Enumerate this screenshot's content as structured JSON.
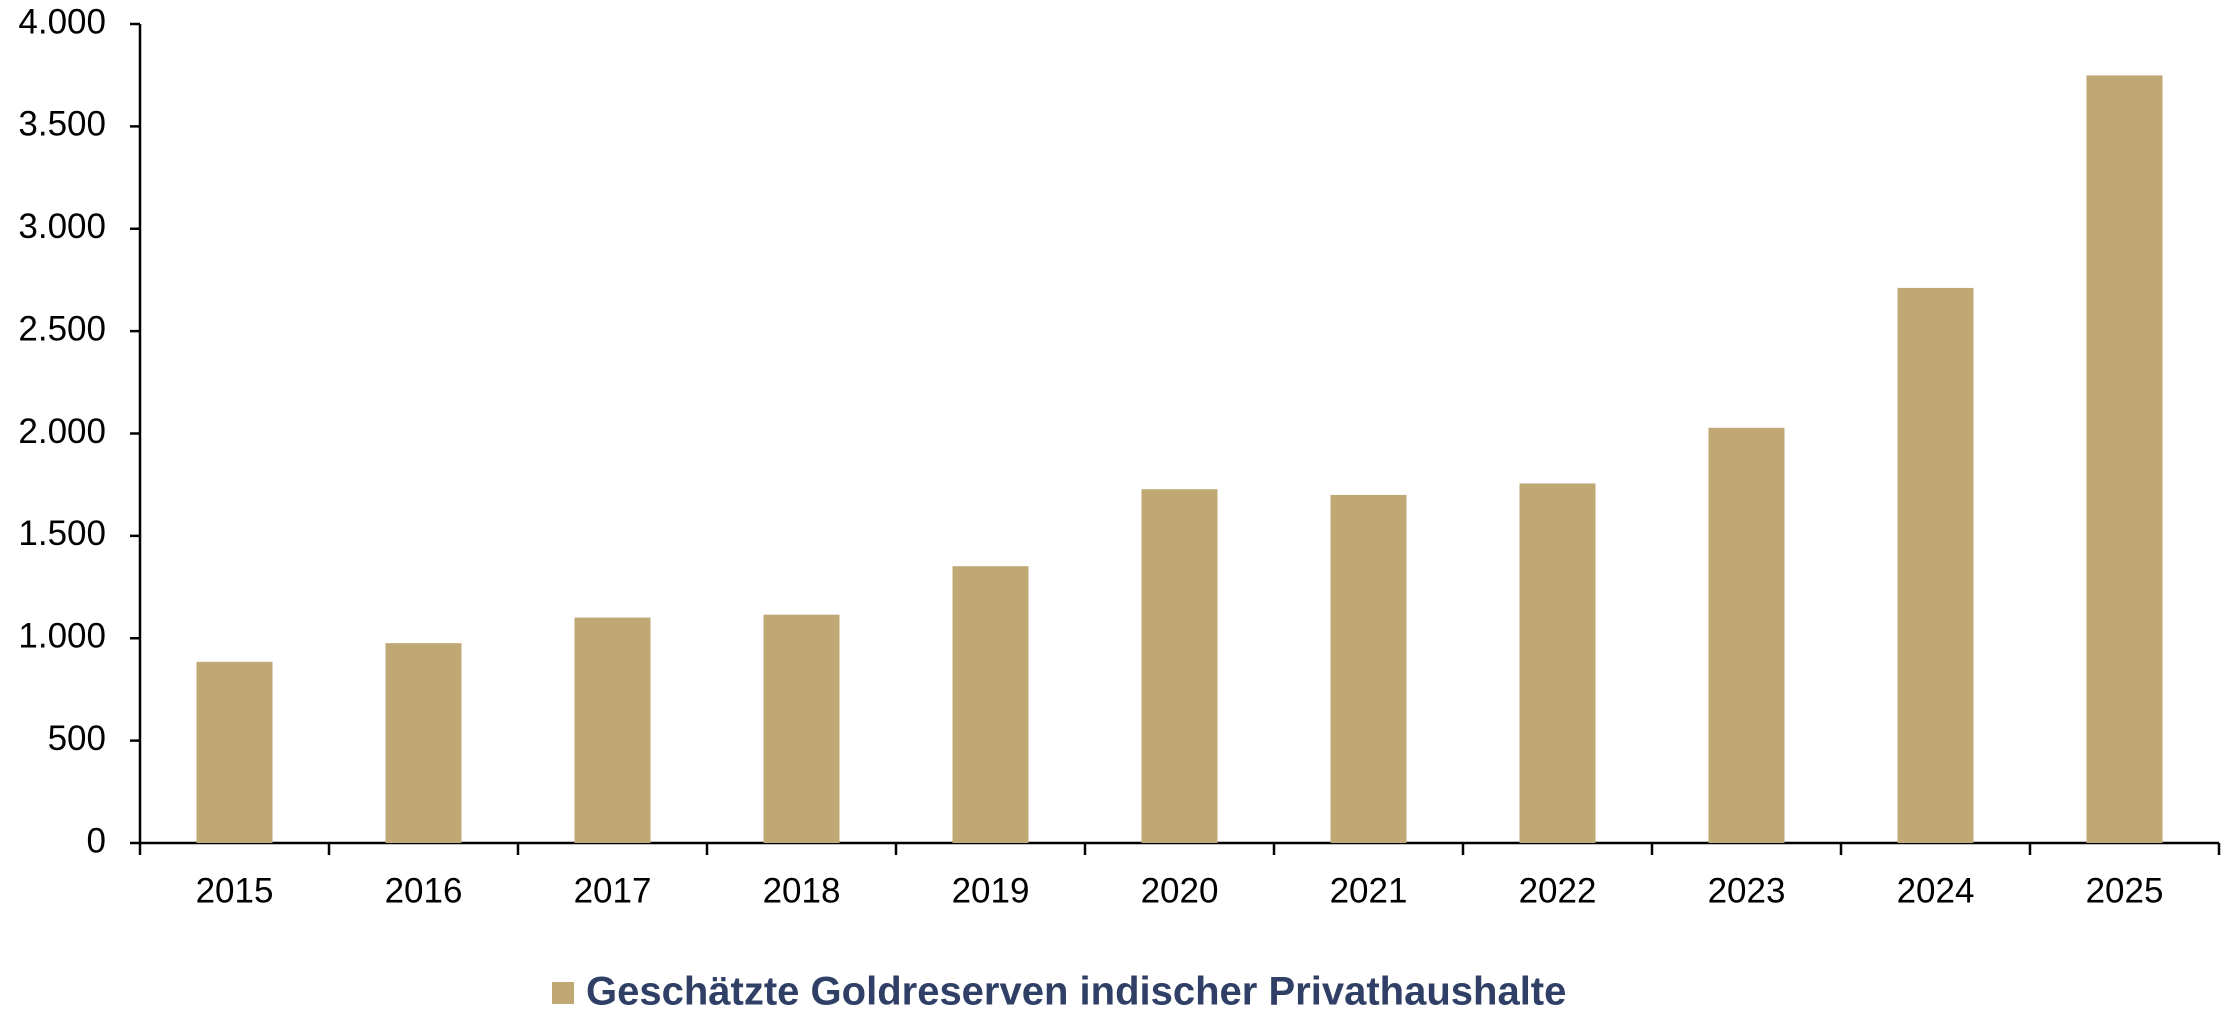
{
  "chart_data": {
    "type": "bar",
    "categories": [
      "2015",
      "2016",
      "2017",
      "2018",
      "2019",
      "2020",
      "2021",
      "2022",
      "2023",
      "2024",
      "2025"
    ],
    "series": [
      {
        "name": "Geschätzte Goldreserven indischer Privathaushalte",
        "color": "#bfa873",
        "values": [
          885,
          976,
          1101,
          1115,
          1352,
          1728,
          1700,
          1756,
          2028,
          2711,
          3749
        ]
      }
    ],
    "ylim": [
      0,
      4000
    ],
    "yticks": [
      0,
      500,
      {
        "value": 1000,
        "label": "1.000"
      },
      {
        "value": 1500,
        "label": "1.500"
      },
      {
        "value": 2000,
        "label": "2.000"
      },
      {
        "value": 2500,
        "label": "2.500"
      },
      {
        "value": 3000,
        "label": "3.000"
      },
      {
        "value": 3500,
        "label": "3.500"
      },
      {
        "value": 4000,
        "label": "4.000"
      }
    ],
    "grid": false,
    "legend": "bottom"
  }
}
